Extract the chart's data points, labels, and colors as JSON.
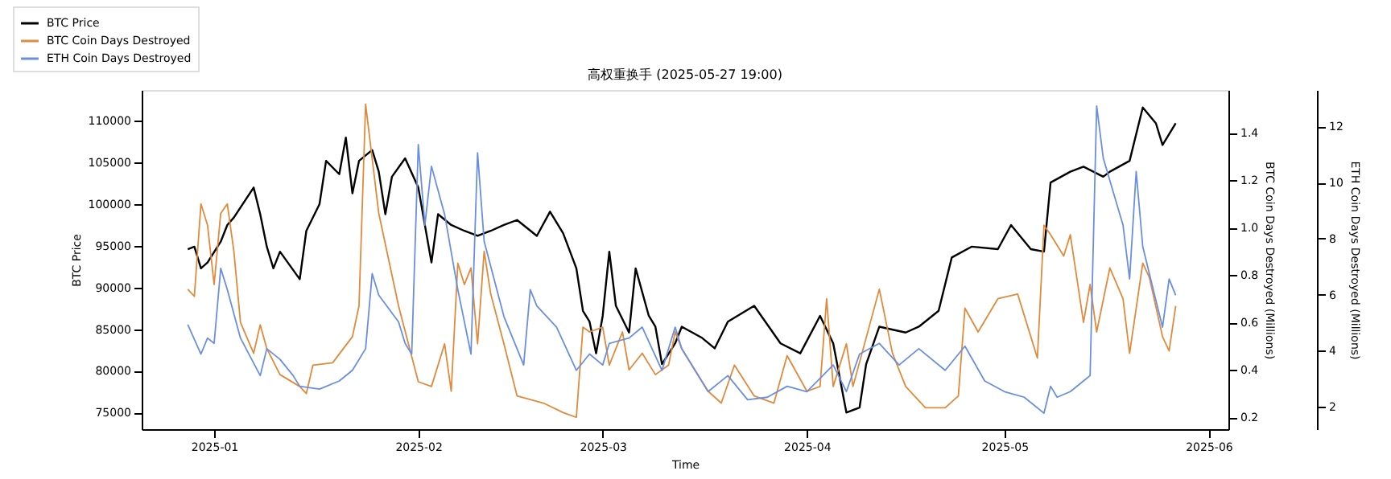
{
  "chart_data": {
    "type": "line",
    "title": "高权重换手 (2025-05-27 19:00)",
    "xlabel": "Time",
    "ylabel": "BTC Price",
    "y2label": "BTC Coin Days Destroyed (Millions)",
    "y3label": "ETH Coin Days Destroyed (Millions)",
    "xlim": [
      "2024-12-21",
      "2025-06-04"
    ],
    "xticks": [
      "2025-01",
      "2025-02",
      "2025-03",
      "2025-04",
      "2025-05",
      "2025-06"
    ],
    "ylim": [
      73000,
      113700
    ],
    "yticks": [
      75000,
      80000,
      85000,
      90000,
      95000,
      100000,
      105000,
      110000
    ],
    "y2lim": [
      0.15,
      1.58
    ],
    "y2ticks": [
      0.2,
      0.4,
      0.6,
      0.8,
      {
        "value": 1,
        "label": "1.0"
      },
      1.2,
      1.4
    ],
    "y3lim": [
      1.2,
      13.3
    ],
    "y3ticks": [
      2,
      4,
      6,
      8,
      10,
      12
    ],
    "grid": false,
    "legend": "top left",
    "line_style": "solid",
    "marker": "none",
    "series": [
      {
        "name": "BTC Price",
        "color": "#000000",
        "axis": "y",
        "x": [
          "2024-12-28",
          "2024-12-29",
          "2024-12-30",
          "2024-12-31",
          "2025-01-02",
          "2025-01-03",
          "2025-01-04",
          "2025-01-07",
          "2025-01-08",
          "2025-01-09",
          "2025-01-10",
          "2025-01-11",
          "2025-01-14",
          "2025-01-15",
          "2025-01-17",
          "2025-01-18",
          "2025-01-20",
          "2025-01-21",
          "2025-01-22",
          "2025-01-23",
          "2025-01-25",
          "2025-01-26",
          "2025-01-27",
          "2025-01-28",
          "2025-01-30",
          "2025-02-01",
          "2025-02-03",
          "2025-02-04",
          "2025-02-06",
          "2025-02-08",
          "2025-02-10",
          "2025-02-12",
          "2025-02-14",
          "2025-02-16",
          "2025-02-19",
          "2025-02-21",
          "2025-02-23",
          "2025-02-25",
          "2025-02-26",
          "2025-02-27",
          "2025-02-28",
          "2025-03-01",
          "2025-03-02",
          "2025-03-03",
          "2025-03-05",
          "2025-03-06",
          "2025-03-08",
          "2025-03-09",
          "2025-03-10",
          "2025-03-12",
          "2025-03-13",
          "2025-03-16",
          "2025-03-18",
          "2025-03-20",
          "2025-03-24",
          "2025-03-28",
          "2025-03-31",
          "2025-04-03",
          "2025-04-05",
          "2025-04-07",
          "2025-04-09",
          "2025-04-10",
          "2025-04-12",
          "2025-04-16",
          "2025-04-18",
          "2025-04-21",
          "2025-04-23",
          "2025-04-26",
          "2025-04-30",
          "2025-05-02",
          "2025-05-05",
          "2025-05-07",
          "2025-05-08",
          "2025-05-11",
          "2025-05-13",
          "2025-05-16",
          "2025-05-17",
          "2025-05-20",
          "2025-05-22",
          "2025-05-24",
          "2025-05-25",
          "2025-05-27"
        ],
        "values": [
          94600,
          94900,
          92300,
          93000,
          95500,
          97500,
          98400,
          102000,
          98800,
          94900,
          92300,
          94300,
          91000,
          96800,
          100000,
          105200,
          103600,
          108000,
          101300,
          105200,
          106500,
          103900,
          98800,
          103300,
          105500,
          102000,
          93000,
          98800,
          97500,
          96800,
          96200,
          96800,
          97500,
          98100,
          96200,
          99100,
          96500,
          92300,
          87200,
          85900,
          82100,
          86600,
          94300,
          87800,
          84600,
          92300,
          86600,
          85300,
          80800,
          83300,
          85300,
          84000,
          82700,
          85900,
          87800,
          83300,
          82100,
          86600,
          83300,
          75000,
          75600,
          80800,
          85300,
          84600,
          85300,
          87200,
          93600,
          94900,
          94600,
          97500,
          94600,
          94300,
          102600,
          103900,
          104500,
          103300,
          103900,
          105200,
          111600,
          109700,
          107100,
          109700
        ]
      },
      {
        "name": "BTC Coin Days Destroyed",
        "color": "#e08a3c",
        "axis": "y2",
        "x": [
          "2024-12-28",
          "2024-12-29",
          "2024-12-30",
          "2024-12-31",
          "2025-01-01",
          "2025-01-02",
          "2025-01-03",
          "2025-01-04",
          "2025-01-05",
          "2025-01-07",
          "2025-01-08",
          "2025-01-09",
          "2025-01-11",
          "2025-01-14",
          "2025-01-15",
          "2025-01-16",
          "2025-01-19",
          "2025-01-22",
          "2025-01-23",
          "2025-01-24",
          "2025-01-26",
          "2025-01-29",
          "2025-02-01",
          "2025-02-03",
          "2025-02-05",
          "2025-02-06",
          "2025-02-07",
          "2025-02-08",
          "2025-02-09",
          "2025-02-10",
          "2025-02-11",
          "2025-02-12",
          "2025-02-14",
          "2025-02-16",
          "2025-02-20",
          "2025-02-23",
          "2025-02-25",
          "2025-02-26",
          "2025-02-27",
          "2025-03-01",
          "2025-03-02",
          "2025-03-04",
          "2025-03-05",
          "2025-03-07",
          "2025-03-09",
          "2025-03-11",
          "2025-03-12",
          "2025-03-13",
          "2025-03-17",
          "2025-03-19",
          "2025-03-21",
          "2025-03-24",
          "2025-03-27",
          "2025-03-29",
          "2025-04-01",
          "2025-04-03",
          "2025-04-04",
          "2025-04-05",
          "2025-04-07",
          "2025-04-08",
          "2025-04-12",
          "2025-04-14",
          "2025-04-16",
          "2025-04-19",
          "2025-04-22",
          "2025-04-24",
          "2025-04-25",
          "2025-04-27",
          "2025-04-30",
          "2025-05-03",
          "2025-05-06",
          "2025-05-07",
          "2025-05-08",
          "2025-05-10",
          "2025-05-11",
          "2025-05-13",
          "2025-05-14",
          "2025-05-15",
          "2025-05-17",
          "2025-05-19",
          "2025-05-20",
          "2025-05-22",
          "2025-05-23",
          "2025-05-25",
          "2025-05-26",
          "2025-05-27"
        ],
        "values": [
          0.74,
          0.71,
          1.1,
          1.01,
          0.76,
          1.06,
          1.1,
          0.9,
          0.6,
          0.47,
          0.59,
          0.49,
          0.38,
          0.33,
          0.3,
          0.42,
          0.43,
          0.54,
          0.67,
          1.52,
          1.06,
          0.67,
          0.35,
          0.33,
          0.51,
          0.31,
          0.85,
          0.76,
          0.83,
          0.51,
          0.9,
          0.72,
          0.51,
          0.29,
          0.26,
          0.22,
          0.2,
          0.58,
          0.56,
          0.58,
          0.42,
          0.56,
          0.4,
          0.47,
          0.38,
          0.42,
          0.56,
          0.49,
          0.31,
          0.26,
          0.42,
          0.29,
          0.26,
          0.46,
          0.31,
          0.33,
          0.7,
          0.33,
          0.51,
          0.33,
          0.74,
          0.47,
          0.33,
          0.24,
          0.24,
          0.29,
          0.66,
          0.56,
          0.7,
          0.72,
          0.45,
          1.01,
          0.97,
          0.88,
          0.97,
          0.6,
          0.76,
          0.56,
          0.83,
          0.7,
          0.47,
          0.85,
          0.79,
          0.54,
          0.48,
          0.67
        ]
      },
      {
        "name": "ETH Coin Days Destroyed",
        "color": "#6a8fe0",
        "axis": "y3",
        "x": [
          "2024-12-28",
          "2024-12-30",
          "2024-12-31",
          "2025-01-01",
          "2025-01-02",
          "2025-01-03",
          "2025-01-05",
          "2025-01-08",
          "2025-01-09",
          "2025-01-11",
          "2025-01-13",
          "2025-01-14",
          "2025-01-17",
          "2025-01-20",
          "2025-01-22",
          "2025-01-24",
          "2025-01-25",
          "2025-01-26",
          "2025-01-29",
          "2025-01-30",
          "2025-01-31",
          "2025-02-01",
          "2025-02-02",
          "2025-02-03",
          "2025-02-05",
          "2025-02-07",
          "2025-02-09",
          "2025-02-10",
          "2025-02-11",
          "2025-02-14",
          "2025-02-17",
          "2025-02-18",
          "2025-02-19",
          "2025-02-22",
          "2025-02-25",
          "2025-02-27",
          "2025-03-01",
          "2025-03-02",
          "2025-03-05",
          "2025-03-07",
          "2025-03-10",
          "2025-03-12",
          "2025-03-13",
          "2025-03-17",
          "2025-03-20",
          "2025-03-23",
          "2025-03-26",
          "2025-03-29",
          "2025-04-01",
          "2025-04-05",
          "2025-04-07",
          "2025-04-09",
          "2025-04-12",
          "2025-04-15",
          "2025-04-18",
          "2025-04-22",
          "2025-04-25",
          "2025-04-28",
          "2025-05-01",
          "2025-05-04",
          "2025-05-07",
          "2025-05-08",
          "2025-05-09",
          "2025-05-11",
          "2025-05-13",
          "2025-05-14",
          "2025-05-15",
          "2025-05-16",
          "2025-05-19",
          "2025-05-20",
          "2025-05-21",
          "2025-05-22",
          "2025-05-24",
          "2025-05-25",
          "2025-05-26",
          "2025-05-27"
        ],
        "values": [
          4.93,
          3.88,
          4.45,
          4.26,
          6.94,
          6.18,
          4.45,
          3.11,
          4.07,
          3.69,
          3.11,
          2.73,
          2.63,
          2.92,
          3.3,
          4.07,
          6.75,
          5.98,
          5.03,
          4.26,
          3.88,
          11.35,
          8.48,
          10.58,
          8.86,
          6.18,
          3.88,
          11.06,
          7.9,
          5.22,
          3.49,
          6.18,
          5.6,
          4.84,
          3.3,
          3.88,
          3.49,
          4.26,
          4.45,
          4.84,
          3.3,
          4.84,
          4.07,
          2.54,
          3.11,
          2.25,
          2.34,
          2.73,
          2.54,
          3.49,
          2.54,
          3.88,
          4.26,
          3.49,
          4.07,
          3.3,
          4.16,
          2.92,
          2.54,
          2.34,
          1.77,
          2.73,
          2.34,
          2.54,
          2.92,
          3.11,
          12.73,
          10.87,
          8.48,
          6.56,
          10.39,
          7.71,
          5.79,
          4.84,
          6.56,
          5.98
        ]
      }
    ]
  }
}
